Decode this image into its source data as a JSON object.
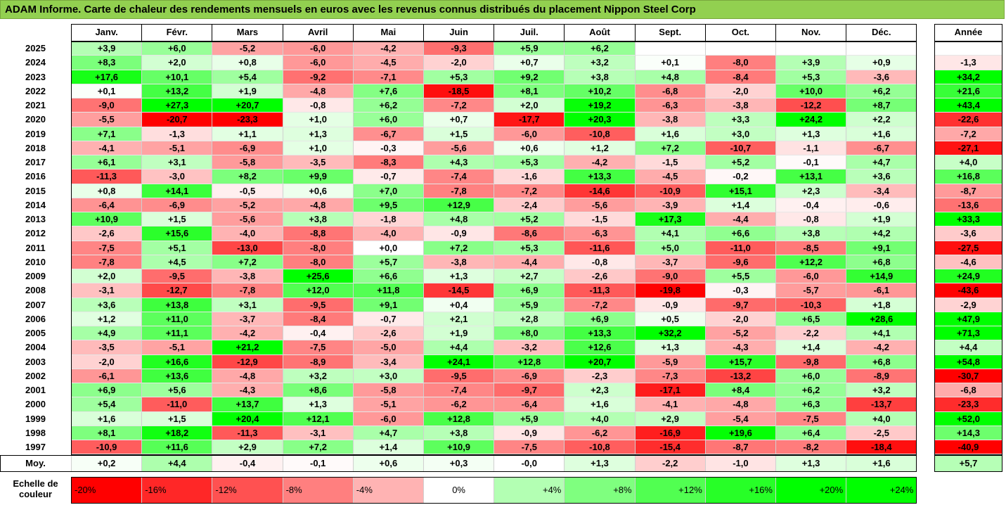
{
  "title": "ADAM Informe. Carte de chaleur des rendements mensuels en euros avec les revenus connus distribués du placement Nippon Steel Corp",
  "chart_data": {
    "type": "heatmap",
    "title": "ADAM Informe. Carte de chaleur des rendements mensuels en euros avec les revenus connus distribués du placement Nippon Steel Corp",
    "columns": [
      "Janv.",
      "Févr.",
      "Mars",
      "Avril",
      "Mai",
      "Juin",
      "Juil.",
      "Août",
      "Sept.",
      "Oct.",
      "Nov.",
      "Déc."
    ],
    "year_column": "Année",
    "rows": [
      {
        "year": "2025",
        "values": [
          "+3,9",
          "+6,0",
          "-5,2",
          "-6,0",
          "-4,2",
          "-9,3",
          "+5,9",
          "+6,2",
          "",
          "",
          "",
          ""
        ],
        "annual": ""
      },
      {
        "year": "2024",
        "values": [
          "+8,3",
          "+2,0",
          "+0,8",
          "-6,0",
          "-4,5",
          "-2,0",
          "+0,7",
          "+3,2",
          "+0,1",
          "-8,0",
          "+3,9",
          "+0,9"
        ],
        "annual": "-1,3"
      },
      {
        "year": "2023",
        "values": [
          "+17,6",
          "+10,1",
          "+5,4",
          "-9,2",
          "-7,1",
          "+5,3",
          "+9,2",
          "+3,8",
          "+4,8",
          "-8,4",
          "+5,3",
          "-3,6"
        ],
        "annual": "+34,2"
      },
      {
        "year": "2022",
        "values": [
          "+0,1",
          "+13,2",
          "+1,9",
          "-4,8",
          "+7,6",
          "-18,5",
          "+8,1",
          "+10,2",
          "-6,8",
          "-2,0",
          "+10,0",
          "+6,2"
        ],
        "annual": "+21,6"
      },
      {
        "year": "2021",
        "values": [
          "-9,0",
          "+27,3",
          "+20,7",
          "-0,8",
          "+6,2",
          "-7,2",
          "+2,0",
          "+19,2",
          "-6,3",
          "-3,8",
          "-12,2",
          "+8,7"
        ],
        "annual": "+43,4"
      },
      {
        "year": "2020",
        "values": [
          "-5,5",
          "-20,7",
          "-23,3",
          "+1,0",
          "+6,0",
          "+0,7",
          "-17,7",
          "+20,3",
          "-3,8",
          "+3,3",
          "+24,2",
          "+2,2"
        ],
        "annual": "-22,6"
      },
      {
        "year": "2019",
        "values": [
          "+7,1",
          "-1,3",
          "+1,1",
          "+1,3",
          "-6,7",
          "+1,5",
          "-6,0",
          "-10,8",
          "+1,6",
          "+3,0",
          "+1,3",
          "+1,6"
        ],
        "annual": "-7,2"
      },
      {
        "year": "2018",
        "values": [
          "-4,1",
          "-5,1",
          "-6,9",
          "+1,0",
          "-0,3",
          "-5,6",
          "+0,6",
          "+1,2",
          "+7,2",
          "-10,7",
          "-1,1",
          "-6,7"
        ],
        "annual": "-27,1"
      },
      {
        "year": "2017",
        "values": [
          "+6,1",
          "+3,1",
          "-5,8",
          "-3,5",
          "-8,3",
          "+4,3",
          "+5,3",
          "-4,2",
          "-1,5",
          "+5,2",
          "-0,1",
          "+4,7"
        ],
        "annual": "+4,0"
      },
      {
        "year": "2016",
        "values": [
          "-11,3",
          "-3,0",
          "+8,2",
          "+9,9",
          "-0,7",
          "-7,4",
          "-1,6",
          "+13,3",
          "-4,5",
          "-0,2",
          "+13,1",
          "+3,6"
        ],
        "annual": "+16,8"
      },
      {
        "year": "2015",
        "values": [
          "+0,8",
          "+14,1",
          "-0,5",
          "+0,6",
          "+7,0",
          "-7,8",
          "-7,2",
          "-14,6",
          "-10,9",
          "+15,1",
          "+2,3",
          "-3,4"
        ],
        "annual": "-8,7"
      },
      {
        "year": "2014",
        "values": [
          "-6,4",
          "-6,9",
          "-5,2",
          "-4,8",
          "+9,5",
          "+12,9",
          "-2,4",
          "-5,6",
          "-3,9",
          "+1,4",
          "-0,4",
          "-0,6"
        ],
        "annual": "-13,6"
      },
      {
        "year": "2013",
        "values": [
          "+10,9",
          "+1,5",
          "-5,6",
          "+3,8",
          "-1,8",
          "+4,8",
          "+5,2",
          "-1,5",
          "+17,3",
          "-4,4",
          "-0,8",
          "+1,9"
        ],
        "annual": "+33,3"
      },
      {
        "year": "2012",
        "values": [
          "-2,6",
          "+15,6",
          "-4,0",
          "-8,8",
          "-4,0",
          "-0,9",
          "-8,6",
          "-6,3",
          "+4,1",
          "+6,6",
          "+3,8",
          "+4,2"
        ],
        "annual": "-3,6"
      },
      {
        "year": "2011",
        "values": [
          "-7,5",
          "+5,1",
          "-13,0",
          "-8,0",
          "+0,0",
          "+7,2",
          "+5,3",
          "-11,6",
          "+5,0",
          "-11,0",
          "-8,5",
          "+9,1"
        ],
        "annual": "-27,5"
      },
      {
        "year": "2010",
        "values": [
          "-7,8",
          "+4,5",
          "+7,2",
          "-8,0",
          "+5,7",
          "-3,8",
          "-4,4",
          "-0,8",
          "-3,7",
          "-9,6",
          "+12,2",
          "+6,8"
        ],
        "annual": "-4,6"
      },
      {
        "year": "2009",
        "values": [
          "+2,0",
          "-9,5",
          "-3,8",
          "+25,6",
          "+6,6",
          "+1,3",
          "+2,7",
          "-2,6",
          "-9,0",
          "+5,5",
          "-6,0",
          "+14,9"
        ],
        "annual": "+24,9"
      },
      {
        "year": "2008",
        "values": [
          "-3,1",
          "-12,7",
          "-7,8",
          "+12,0",
          "+11,8",
          "-14,5",
          "+6,9",
          "-11,3",
          "-19,8",
          "-0,3",
          "-5,7",
          "-6,1"
        ],
        "annual": "-43,6"
      },
      {
        "year": "2007",
        "values": [
          "+3,6",
          "+13,8",
          "+3,1",
          "-9,5",
          "+9,1",
          "+0,4",
          "+5,9",
          "-7,2",
          "-0,9",
          "-9,7",
          "-10,3",
          "+1,8"
        ],
        "annual": "-2,9"
      },
      {
        "year": "2006",
        "values": [
          "+1,2",
          "+11,0",
          "-3,7",
          "-8,4",
          "-0,7",
          "+2,1",
          "+2,8",
          "+6,9",
          "+0,5",
          "-2,0",
          "+6,5",
          "+28,6"
        ],
        "annual": "+47,9"
      },
      {
        "year": "2005",
        "values": [
          "+4,9",
          "+11,1",
          "-4,2",
          "-0,4",
          "-2,6",
          "+1,9",
          "+8,0",
          "+13,3",
          "+32,2",
          "-5,2",
          "-2,2",
          "+4,1"
        ],
        "annual": "+71,3"
      },
      {
        "year": "2004",
        "values": [
          "-3,5",
          "-5,1",
          "+21,2",
          "-7,5",
          "-5,0",
          "+4,4",
          "-3,2",
          "+12,6",
          "+1,3",
          "-4,3",
          "+1,4",
          "-4,2"
        ],
        "annual": "+4,4"
      },
      {
        "year": "2003",
        "values": [
          "-2,0",
          "+16,6",
          "-12,9",
          "-8,9",
          "-3,4",
          "+24,1",
          "+12,8",
          "+20,7",
          "-5,9",
          "+15,7",
          "-9,8",
          "+6,8"
        ],
        "annual": "+54,8"
      },
      {
        "year": "2002",
        "values": [
          "-6,1",
          "+13,6",
          "-4,8",
          "+3,2",
          "+3,0",
          "-9,5",
          "-6,9",
          "-2,3",
          "-7,3",
          "-13,2",
          "+6,0",
          "-8,9"
        ],
        "annual": "-30,7"
      },
      {
        "year": "2001",
        "values": [
          "+6,9",
          "+5,6",
          "-4,3",
          "+8,6",
          "-5,8",
          "-7,4",
          "-9,7",
          "+2,3",
          "-17,1",
          "+8,4",
          "+6,2",
          "+3,2"
        ],
        "annual": "-6,8"
      },
      {
        "year": "2000",
        "values": [
          "+5,4",
          "-11,0",
          "+13,7",
          "+1,3",
          "-5,1",
          "-6,2",
          "-6,4",
          "+1,6",
          "-4,1",
          "-4,8",
          "+6,3",
          "-13,7"
        ],
        "annual": "-23,3"
      },
      {
        "year": "1999",
        "values": [
          "+1,6",
          "+1,5",
          "+20,4",
          "+12,1",
          "-6,0",
          "+12,8",
          "+5,9",
          "+4,0",
          "+2,9",
          "-5,4",
          "-7,5",
          "+4,0"
        ],
        "annual": "+52,0"
      },
      {
        "year": "1998",
        "values": [
          "+8,1",
          "+18,2",
          "-11,3",
          "-3,1",
          "+4,7",
          "+3,8",
          "-0,9",
          "-6,2",
          "-16,9",
          "+19,6",
          "+6,4",
          "-2,5"
        ],
        "annual": "+14,3"
      },
      {
        "year": "1997",
        "values": [
          "-10,9",
          "+11,6",
          "+2,9",
          "+7,2",
          "+1,4",
          "+10,9",
          "-7,5",
          "-10,8",
          "-15,4",
          "-8,7",
          "-8,2",
          "-18,4"
        ],
        "annual": "-40,9"
      }
    ],
    "average_label": "Moy.",
    "average": [
      "+0,2",
      "+4,4",
      "-0,4",
      "-0,1",
      "+0,6",
      "+0,3",
      "-0,0",
      "+1,3",
      "-2,2",
      "-1,0",
      "+1,3",
      "+1,6"
    ],
    "average_annual": "+5,7",
    "scale_label_line1": "Echelle de",
    "scale_label_line2": "couleur",
    "scale": [
      {
        "label": "-20%",
        "value": -20
      },
      {
        "label": "-16%",
        "value": -16
      },
      {
        "label": "-12%",
        "value": -12
      },
      {
        "label": "-8%",
        "value": -8
      },
      {
        "label": "-4%",
        "value": -4
      },
      {
        "label": "0%",
        "value": 0
      },
      {
        "label": "+4%",
        "value": 4
      },
      {
        "label": "+8%",
        "value": 8
      },
      {
        "label": "+12%",
        "value": 12
      },
      {
        "label": "+16%",
        "value": 16
      },
      {
        "label": "+20%",
        "value": 20
      },
      {
        "label": "+24%",
        "value": 24
      }
    ],
    "colors": {
      "title_bg": "#92d050",
      "negative_max": "#ff0000",
      "neutral": "#ffffff",
      "positive_max": "#00ff00"
    }
  }
}
